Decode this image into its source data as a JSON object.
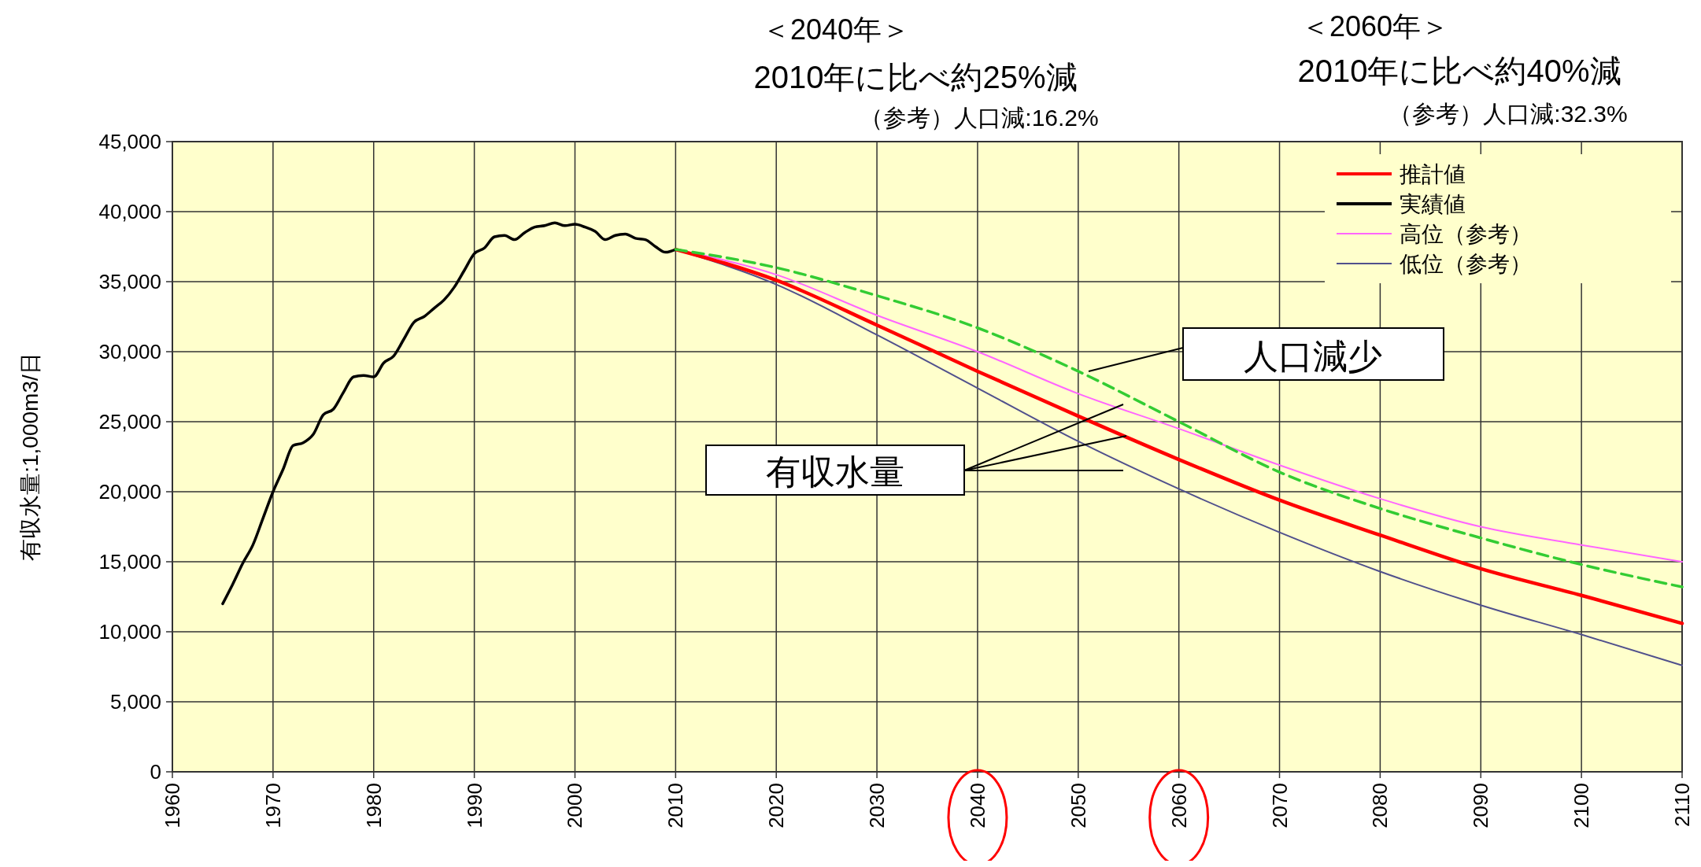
{
  "chart_data": {
    "type": "line",
    "ylabel": "有収水量:1,000m3/日",
    "xlim": [
      1960,
      2110
    ],
    "xticks": [
      1960,
      1970,
      1980,
      1990,
      2000,
      2010,
      2020,
      2030,
      2040,
      2050,
      2060,
      2070,
      2080,
      2090,
      2100,
      2110
    ],
    "ylim": [
      0,
      45000
    ],
    "yticks": [
      0,
      {
        "value": 5000,
        "label": "5,000"
      },
      {
        "value": 10000,
        "label": "10,000"
      },
      {
        "value": 15000,
        "label": "15,000"
      },
      {
        "value": 20000,
        "label": "20,000"
      },
      {
        "value": 25000,
        "label": "25,000"
      },
      {
        "value": 30000,
        "label": "30,000"
      },
      {
        "value": 35000,
        "label": "35,000"
      },
      {
        "value": 40000,
        "label": "40,000"
      },
      {
        "value": 45000,
        "label": "45,000"
      }
    ],
    "grid": true,
    "legend": "top right",
    "marker": "none",
    "series": [
      {
        "name": "推計値",
        "color": "#ff0000",
        "x": [
          2010,
          2020,
          2030,
          2040,
          2050,
          2060,
          2070,
          2080,
          2090,
          2100,
          2110
        ],
        "values": [
          37300,
          35100,
          31900,
          28600,
          25400,
          22300,
          19400,
          16900,
          14500,
          12600,
          10600
        ]
      },
      {
        "name": "実績値",
        "color": "#000000",
        "x": [
          1965,
          1966,
          1967,
          1968,
          1969,
          1970,
          1971,
          1972,
          1973,
          1974,
          1975,
          1976,
          1977,
          1978,
          1979,
          1980,
          1981,
          1982,
          1983,
          1984,
          1985,
          1986,
          1987,
          1988,
          1989,
          1990,
          1991,
          1992,
          1993,
          1994,
          1995,
          1996,
          1997,
          1998,
          1999,
          2000,
          2001,
          2002,
          2003,
          2004,
          2005,
          2006,
          2007,
          2008,
          2009,
          2010
        ],
        "values": [
          12000,
          13400,
          14900,
          16200,
          18100,
          20000,
          21600,
          23300,
          23500,
          24100,
          25500,
          25900,
          27100,
          28200,
          28300,
          28200,
          29200,
          29700,
          30900,
          32100,
          32500,
          33100,
          33700,
          34600,
          35800,
          37000,
          37400,
          38200,
          38300,
          38000,
          38500,
          38900,
          39000,
          39200,
          39000,
          39100,
          38900,
          38600,
          38000,
          38300,
          38400,
          38100,
          38000,
          37500,
          37100,
          37300
        ]
      },
      {
        "name": "高位（参考）",
        "color": "#ff66ff",
        "x": [
          2010,
          2020,
          2030,
          2040,
          2050,
          2060,
          2070,
          2080,
          2090,
          2100,
          2110
        ],
        "values": [
          37300,
          35500,
          32600,
          30000,
          27000,
          24500,
          21900,
          19500,
          17500,
          16200,
          15000
        ]
      },
      {
        "name": "低位（参考）",
        "color": "#50508c",
        "x": [
          2010,
          2020,
          2030,
          2040,
          2050,
          2060,
          2070,
          2080,
          2090,
          2100,
          2110
        ],
        "values": [
          37300,
          34800,
          31200,
          27400,
          23600,
          20200,
          17100,
          14300,
          11900,
          9800,
          7600
        ]
      },
      {
        "color": "#33cc33",
        "line_style": "dashed",
        "x": [
          2010,
          2020,
          2030,
          2040,
          2050,
          2060,
          2070,
          2080,
          2090,
          2100,
          2110
        ],
        "values": [
          37300,
          36000,
          34000,
          31700,
          28600,
          25000,
          21400,
          18800,
          16700,
          14800,
          13200
        ]
      }
    ],
    "annotations": [
      "＜2040年＞",
      "2010年に比べ約25%減",
      "（参考）人口減:16.2%",
      "＜2060年＞",
      "2010年に比べ約40%減",
      "（参考）人口減:32.3%",
      "人口減少",
      "有収水量"
    ]
  }
}
